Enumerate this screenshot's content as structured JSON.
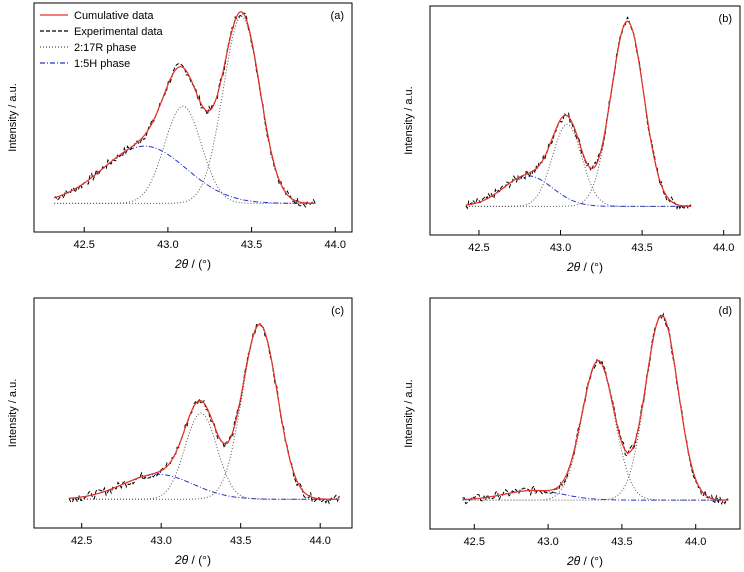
{
  "colors": {
    "cumulative": "#e8312a",
    "experimental": "#000000",
    "phase_2_17R": "#555555",
    "phase_1_5H": "#2233cc",
    "frame": "#000000"
  },
  "legend": {
    "position": "top-left",
    "entries": [
      {
        "key": "cumulative",
        "label": "Cumulative data"
      },
      {
        "key": "experimental",
        "label": "Experimental data"
      },
      {
        "key": "phase_2_17R",
        "label": "2:17R phase"
      },
      {
        "key": "phase_1_5H",
        "label": "1:5H phase"
      }
    ]
  },
  "chart_data": [
    {
      "type": "line",
      "panel_label": "(a)",
      "xlabel_symbol": "2θ",
      "xlabel_unit": " / (°)",
      "ylabel": "Intensity / a.u.",
      "xlim": [
        42.2,
        44.1
      ],
      "ylim": [
        -0.15,
        1.05
      ],
      "xticks": [
        42.5,
        43.0,
        43.5,
        44.0
      ],
      "xtick_labels": [
        "42.5",
        "43.0",
        "43.5",
        "44.0"
      ],
      "show_legend": true,
      "x_range": [
        42.32,
        43.88
      ],
      "peaks": [
        {
          "name": "2:17R phase",
          "center": 43.44,
          "height": 0.98,
          "width": 0.11
        },
        {
          "name": "2:17R phase",
          "center": 43.09,
          "height": 0.51,
          "width": 0.11
        },
        {
          "name": "1:5H phase",
          "center": 42.86,
          "height": 0.3,
          "width": 0.25
        }
      ],
      "baseline": 0.0
    },
    {
      "type": "line",
      "panel_label": "(b)",
      "xlabel_symbol": "2θ",
      "xlabel_unit": " / (°)",
      "ylabel": "Intensity / a.u.",
      "xlim": [
        42.2,
        44.1
      ],
      "ylim": [
        -0.15,
        1.05
      ],
      "xticks": [
        42.5,
        43.0,
        43.5,
        44.0
      ],
      "xtick_labels": [
        "42.5",
        "43.0",
        "43.5",
        "44.0"
      ],
      "show_legend": false,
      "x_range": [
        42.42,
        43.8
      ],
      "peaks": [
        {
          "name": "2:17R phase",
          "center": 43.41,
          "height": 0.97,
          "width": 0.1
        },
        {
          "name": "2:17R phase",
          "center": 43.04,
          "height": 0.43,
          "width": 0.09
        },
        {
          "name": "1:5H phase",
          "center": 42.8,
          "height": 0.16,
          "width": 0.15
        }
      ],
      "baseline": 0.0
    },
    {
      "type": "line",
      "panel_label": "(c)",
      "xlabel_symbol": "2θ",
      "xlabel_unit": " / (°)",
      "ylabel": "Intensity / a.u.",
      "xlim": [
        42.2,
        44.2
      ],
      "ylim": [
        -0.15,
        1.05
      ],
      "xticks": [
        42.5,
        43.0,
        43.5,
        44.0
      ],
      "xtick_labels": [
        "42.5",
        "43.0",
        "43.5",
        "44.0"
      ],
      "show_legend": false,
      "x_range": [
        42.42,
        44.12
      ],
      "peaks": [
        {
          "name": "2:17R phase",
          "center": 43.62,
          "height": 0.91,
          "width": 0.11
        },
        {
          "name": "2:17R phase",
          "center": 43.25,
          "height": 0.45,
          "width": 0.1
        },
        {
          "name": "1:5H phase",
          "center": 42.98,
          "height": 0.13,
          "width": 0.22
        }
      ],
      "baseline": 0.0
    },
    {
      "type": "line",
      "panel_label": "(d)",
      "xlabel_symbol": "2θ",
      "xlabel_unit": " / (°)",
      "ylabel": "Intensity / a.u.",
      "xlim": [
        42.2,
        44.3
      ],
      "ylim": [
        -0.15,
        1.05
      ],
      "xticks": [
        42.5,
        43.0,
        43.5,
        44.0
      ],
      "xtick_labels": [
        "42.5",
        "43.0",
        "43.5",
        "44.0"
      ],
      "show_legend": false,
      "x_range": [
        42.42,
        44.22
      ],
      "peaks": [
        {
          "name": "2:17R phase",
          "center": 43.77,
          "height": 0.96,
          "width": 0.11
        },
        {
          "name": "2:17R phase",
          "center": 43.34,
          "height": 0.72,
          "width": 0.11
        },
        {
          "name": "1:5H phase",
          "center": 42.9,
          "height": 0.05,
          "width": 0.2
        }
      ],
      "baseline": 0.0
    }
  ]
}
